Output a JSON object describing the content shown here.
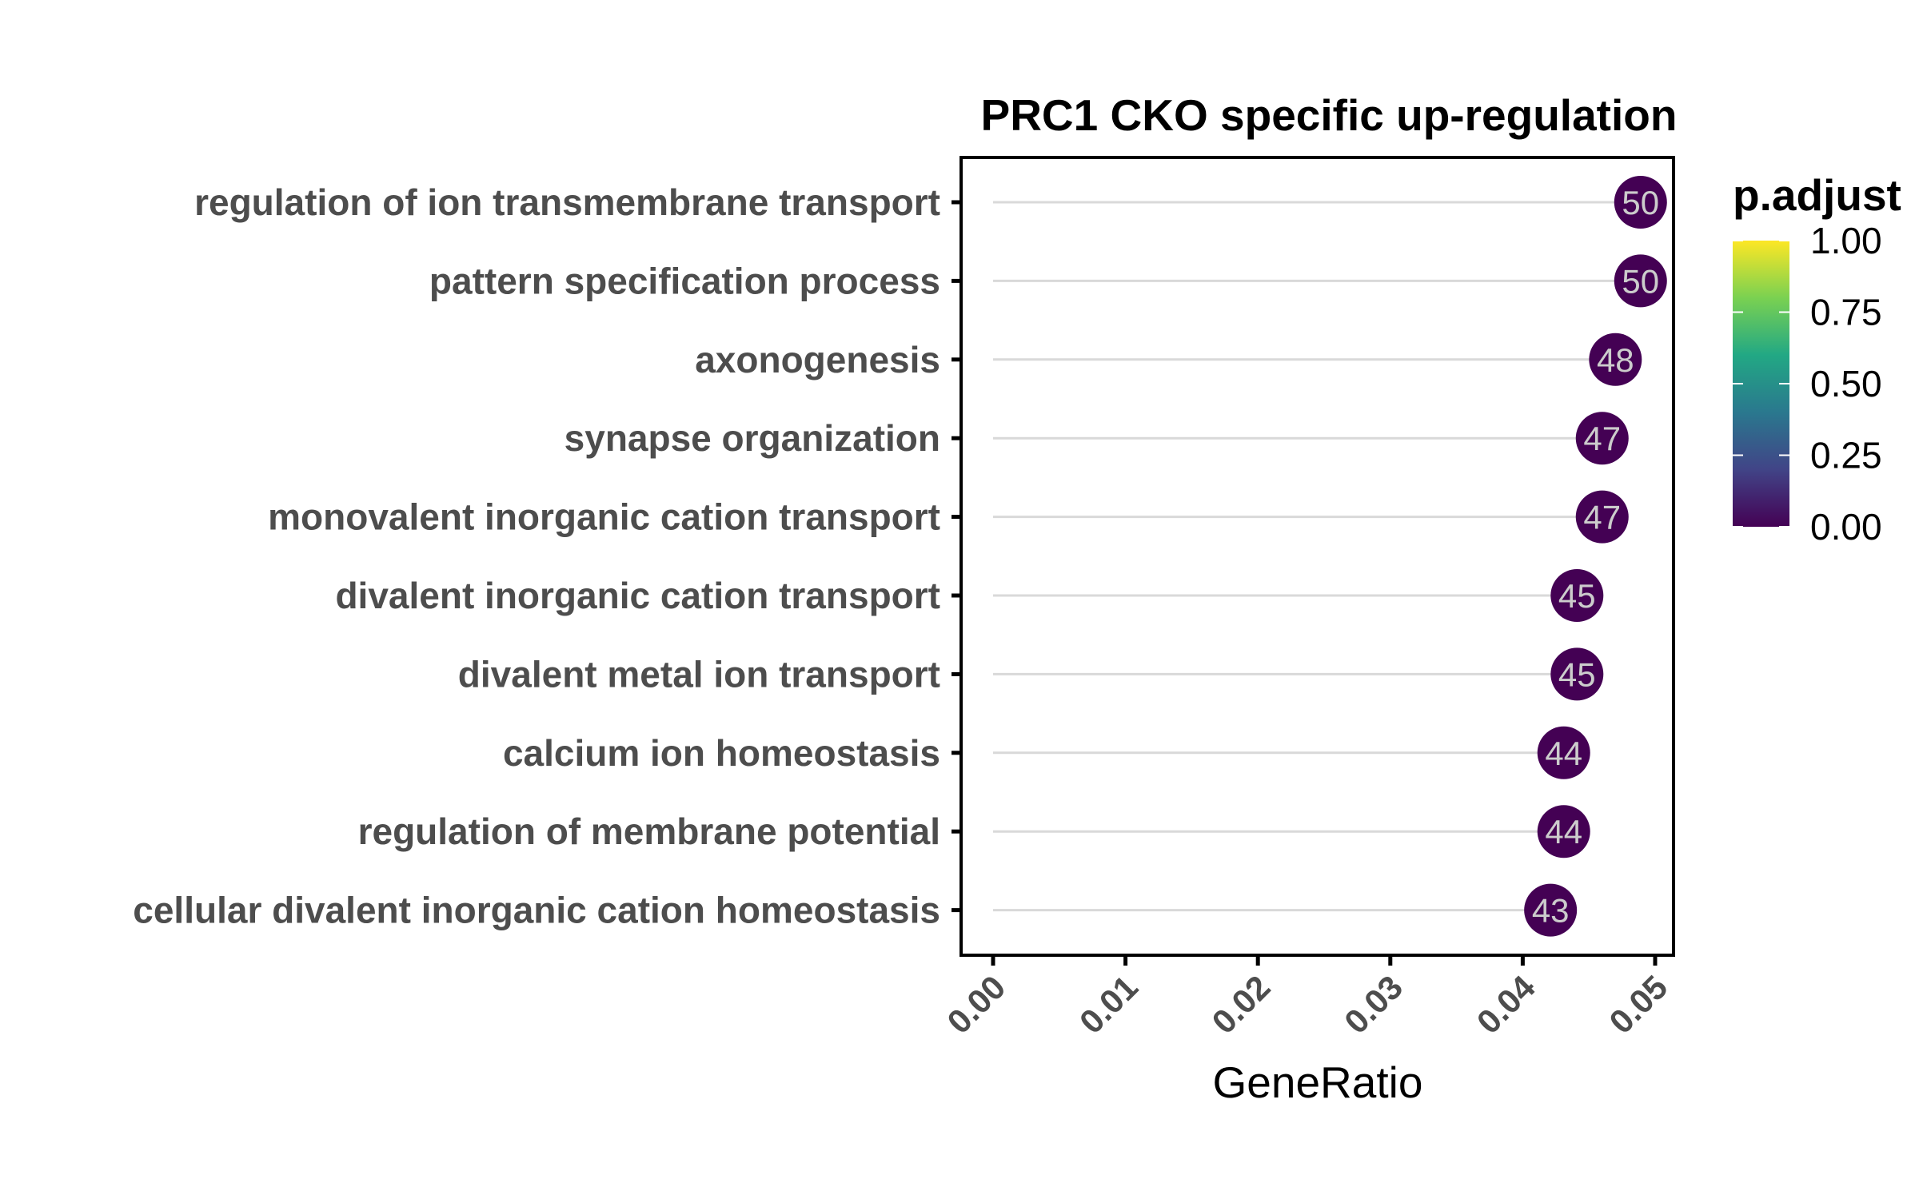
{
  "chart_data": {
    "type": "scatter",
    "title": "PRC1 CKO specific up-regulation",
    "xlabel": "GeneRatio",
    "ylabel": "",
    "xlim": [
      0.0,
      0.05
    ],
    "x_ticks": [
      "0.00",
      "0.01",
      "0.02",
      "0.03",
      "0.04",
      "0.05"
    ],
    "categories": [
      "regulation of ion transmembrane transport",
      "pattern specification process",
      "axonogenesis",
      "synapse organization",
      "monovalent inorganic cation transport",
      "divalent inorganic cation transport",
      "divalent metal ion transport",
      "calcium ion homeostasis",
      "regulation of membrane potential",
      "cellular divalent inorganic cation homeostasis"
    ],
    "gene_ratio": [
      0.0489,
      0.0489,
      0.047,
      0.046,
      0.046,
      0.0441,
      0.0441,
      0.0431,
      0.0431,
      0.0421
    ],
    "count": [
      50,
      50,
      48,
      47,
      47,
      45,
      45,
      44,
      44,
      43
    ],
    "p_adjust": [
      0.0,
      0.0,
      0.0,
      0.0,
      0.0,
      0.0,
      0.0,
      0.0,
      0.0,
      0.0
    ],
    "legend": {
      "title": "p.adjust",
      "ticks": [
        "1.00",
        "0.75",
        "0.50",
        "0.25",
        "0.00"
      ],
      "placement": "right",
      "colors": [
        "#fde725",
        "#7ad151",
        "#22a884",
        "#2a788e",
        "#414487",
        "#440154"
      ]
    },
    "grid": false,
    "segment_color": "#d9d9d9",
    "point_color": "#440154"
  }
}
